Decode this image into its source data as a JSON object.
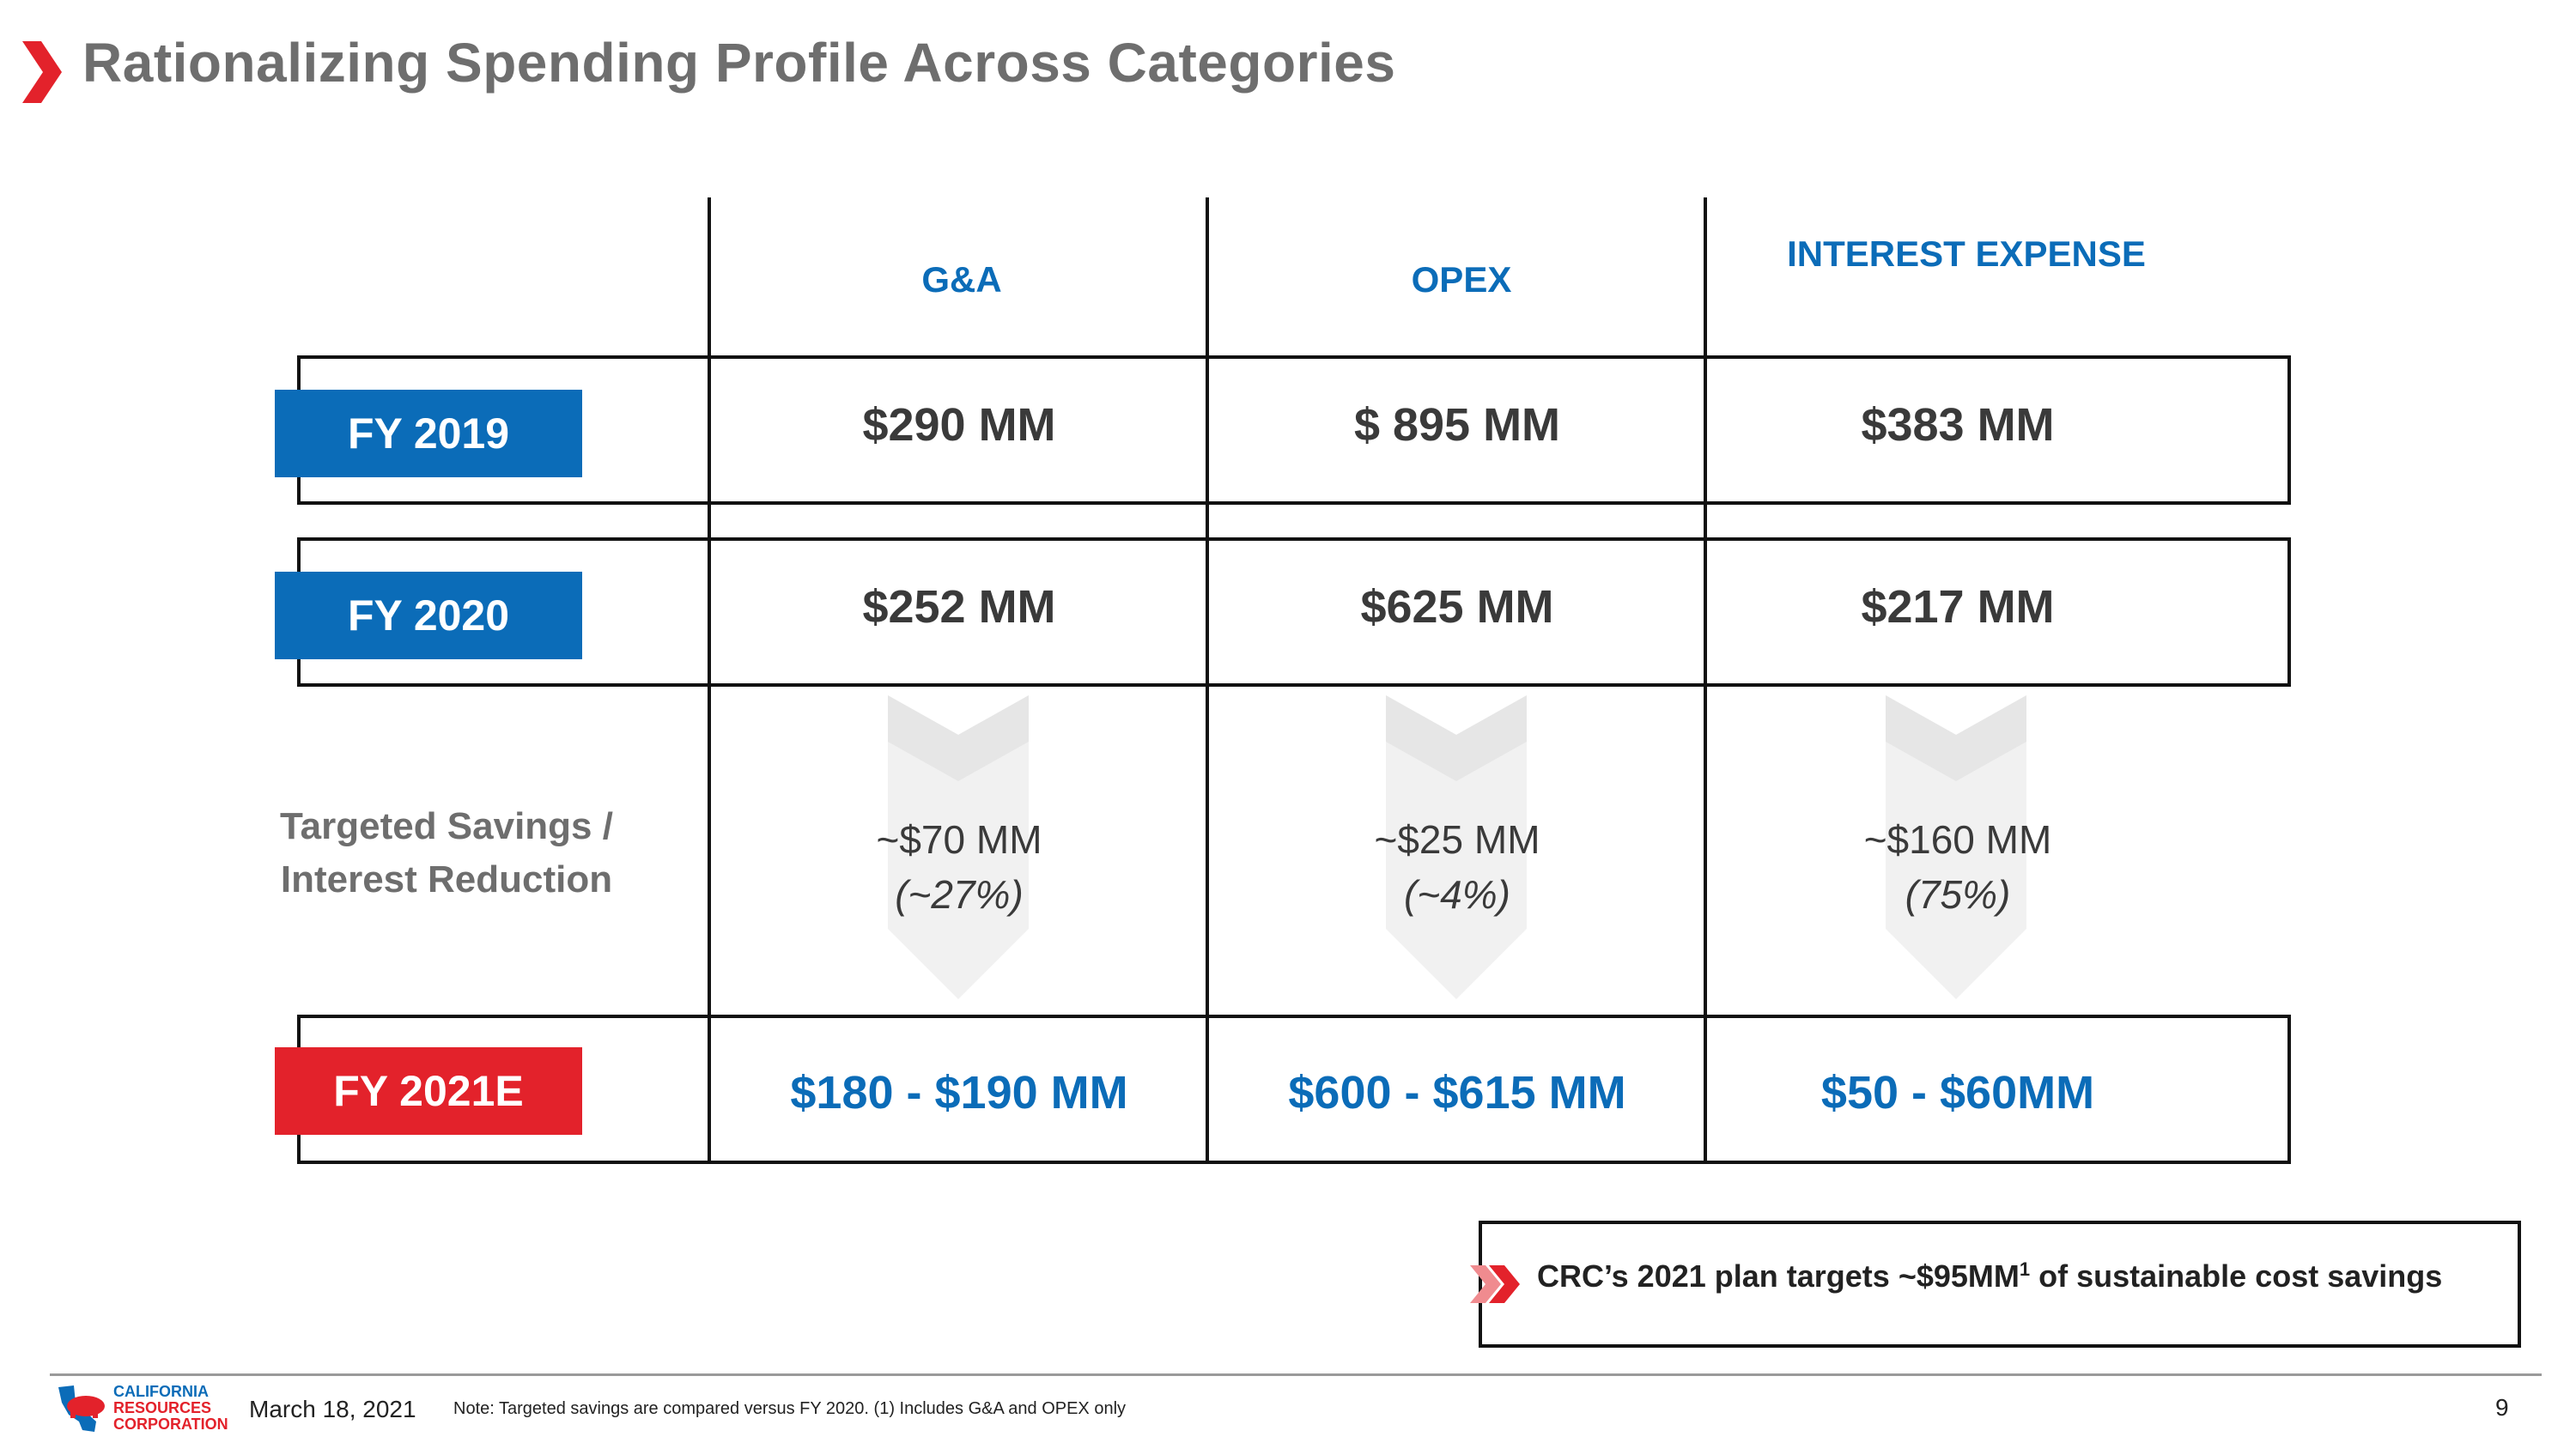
{
  "title": "Rationalizing Spending Profile Across Categories",
  "columns": [
    "G&A",
    "OPEX",
    "INTEREST EXPENSE"
  ],
  "rows": [
    {
      "label": "FY 2019",
      "values": [
        "$290 MM",
        "$ 895 MM",
        "$383 MM"
      ]
    },
    {
      "label": "FY 2020",
      "values": [
        "$252 MM",
        "$625 MM",
        "$217 MM"
      ]
    },
    {
      "label": "FY 2021E",
      "values": [
        "$180 - $190 MM",
        "$600 - $615 MM",
        "$50 - $60MM"
      ]
    }
  ],
  "savings": {
    "label_line1": "Targeted Savings /",
    "label_line2": "Interest Reduction",
    "items": [
      {
        "amount": "~$70 MM",
        "pct": "(~27%)"
      },
      {
        "amount": "~$25 MM",
        "pct": "(~4%)"
      },
      {
        "amount": "~$160 MM",
        "pct": "(75%)"
      }
    ]
  },
  "callout": {
    "text_before": "CRC’s 2021 plan targets ~$95MM",
    "superscript": "1",
    "text_after": " of sustainable cost savings"
  },
  "footer": {
    "logo_line1": "CALIFORNIA",
    "logo_line2": "RESOURCES",
    "logo_line3": "CORPORATION",
    "date": "March 18, 2021",
    "note": "Note: Targeted savings are compared versus FY 2020. (1) Includes G&A and OPEX only",
    "page_number": "9"
  },
  "colors": {
    "accent_blue": "#0b6cb8",
    "accent_red": "#e3222b",
    "title_gray": "#6e6e6e"
  }
}
